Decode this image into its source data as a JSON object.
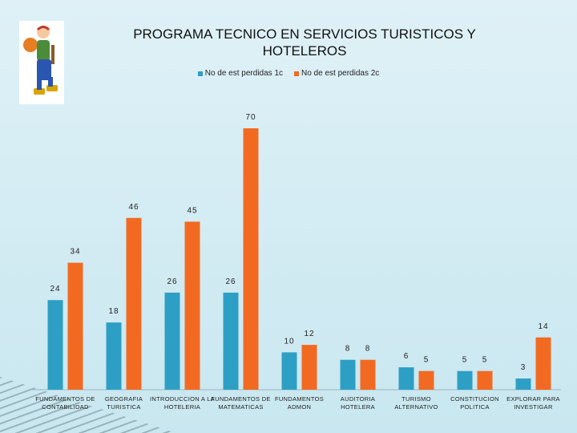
{
  "chart_data": {
    "type": "bar",
    "title": "PROGRAMA  TECNICO EN SERVICIOS TURISTICOS Y HOTELEROS",
    "categories": [
      [
        "FUNDAMENTOS DE",
        "CONTABILIDAD"
      ],
      [
        "GEOGRAFIA",
        "TURISTICA"
      ],
      [
        "INTRODUCCION A LA",
        "HOTELERIA"
      ],
      [
        "FUNDAMENTOS DE",
        "MATEMATICAS"
      ],
      [
        "FUNDAMENTOS",
        "ADMON"
      ],
      [
        "AUDITORIA",
        "HOTELERA"
      ],
      [
        "TURISMO",
        "ALTERNATIVO"
      ],
      [
        "CONSTITUCION",
        "POLITICA"
      ],
      [
        "EXPLORAR PARA",
        "INVESTIGAR"
      ]
    ],
    "series": [
      {
        "name": "No de est perdidas 1c",
        "color": "#2e9fc4",
        "values": [
          24,
          18,
          26,
          26,
          10,
          8,
          6,
          5,
          3
        ]
      },
      {
        "name": "No de est perdidas 2c",
        "color": "#f26a21",
        "values": [
          34,
          46,
          45,
          70,
          12,
          8,
          5,
          5,
          14
        ]
      }
    ],
    "ylim": [
      0,
      70
    ],
    "grid": false,
    "legend_position": "top"
  }
}
